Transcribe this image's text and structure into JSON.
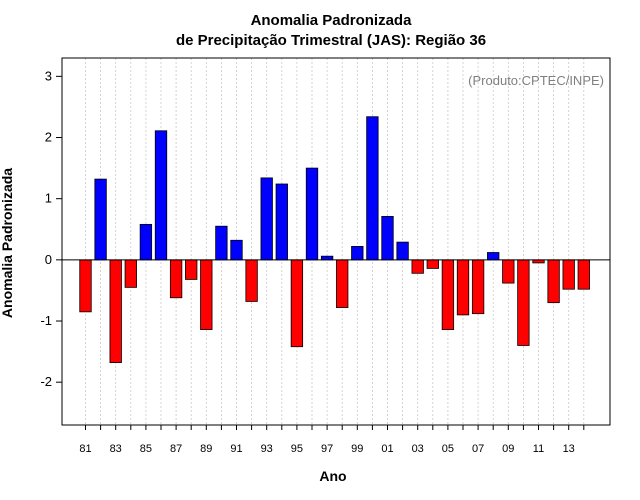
{
  "chart_data": {
    "type": "bar",
    "title": "Anomalia Padronizada",
    "subtitle": "de Precipitação Trimestral (JAS): Região 36",
    "xlabel": "Ano",
    "ylabel": "Anomalia Padronizada",
    "annotation": "(Produto:CPTEC/INPE)",
    "ylim": [
      -2.7,
      3.3
    ],
    "yticks": [
      -2,
      -1,
      0,
      1,
      2,
      3
    ],
    "x_tick_labels": [
      "81",
      "83",
      "85",
      "87",
      "89",
      "91",
      "93",
      "95",
      "97",
      "99",
      "01",
      "03",
      "05",
      "07",
      "09",
      "11",
      "13"
    ],
    "categories": [
      "1981",
      "1982",
      "1983",
      "1984",
      "1985",
      "1986",
      "1987",
      "1988",
      "1989",
      "1990",
      "1991",
      "1992",
      "1993",
      "1994",
      "1995",
      "1996",
      "1997",
      "1998",
      "1999",
      "2000",
      "2001",
      "2002",
      "2003",
      "2004",
      "2005",
      "2006",
      "2007",
      "2008",
      "2009",
      "2010",
      "2011",
      "2012",
      "2013",
      "2014"
    ],
    "values": [
      -0.85,
      1.32,
      -1.68,
      -0.45,
      0.58,
      2.11,
      -0.62,
      -0.32,
      -1.14,
      0.55,
      0.32,
      -0.68,
      1.34,
      1.24,
      -1.42,
      1.5,
      0.06,
      -0.78,
      0.22,
      2.34,
      0.71,
      0.29,
      -0.22,
      -0.14,
      -1.14,
      -0.9,
      -0.88,
      0.12,
      -0.38,
      -1.4,
      -0.05,
      -0.7,
      -0.48,
      -0.48
    ],
    "grid": true,
    "colors": {
      "positive": "#0000ff",
      "negative": "#ff0000",
      "grid": "#c8c8c8",
      "axis": "#000000",
      "annotation": "#808080"
    }
  }
}
